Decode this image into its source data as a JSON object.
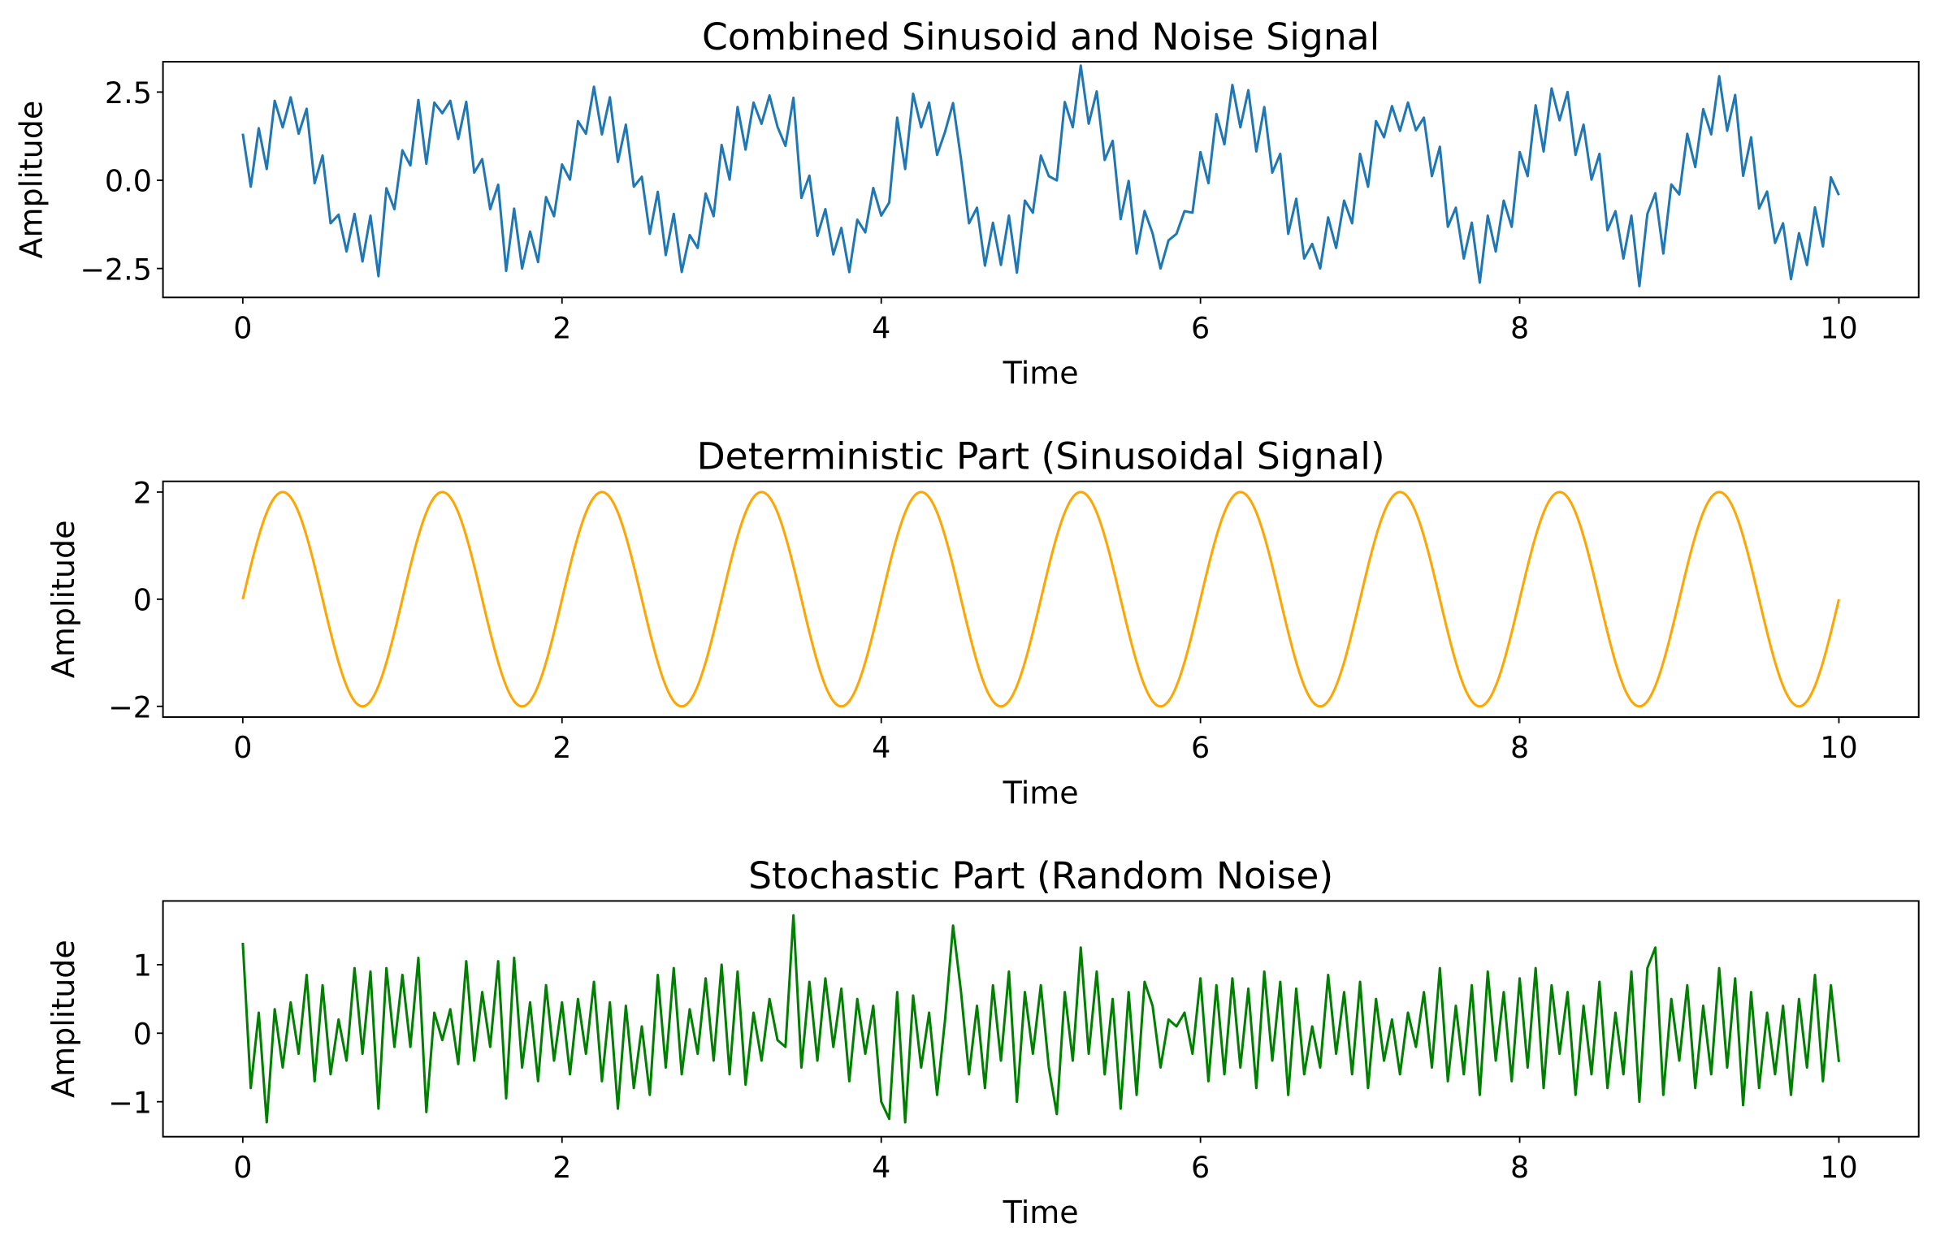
{
  "chart_data": [
    {
      "type": "line",
      "title": "Combined Sinusoid and Noise Signal",
      "xlabel": "Time",
      "ylabel": "Amplitude",
      "xlim": [
        -0.5,
        10.5
      ],
      "ylim": [
        -3.32,
        3.36
      ],
      "xticks": [
        0,
        2,
        4,
        6,
        8,
        10
      ],
      "xtick_labels": [
        "0",
        "2",
        "4",
        "6",
        "8",
        "10"
      ],
      "yticks": [
        -2.5,
        0,
        2.5
      ],
      "ytick_labels": [
        "−2.5",
        "0.0",
        "2.5"
      ],
      "color": "#1f77b4",
      "series": "sinusoid + noise"
    },
    {
      "type": "line",
      "title": "Deterministic Part (Sinusoidal Signal)",
      "xlabel": "Time",
      "ylabel": "Amplitude",
      "xlim": [
        -0.5,
        10.5
      ],
      "ylim": [
        -2.2,
        2.2
      ],
      "xticks": [
        0,
        2,
        4,
        6,
        8,
        10
      ],
      "xtick_labels": [
        "0",
        "2",
        "4",
        "6",
        "8",
        "10"
      ],
      "yticks": [
        -2,
        0,
        2
      ],
      "ytick_labels": [
        "−2",
        "0",
        "2"
      ],
      "color": "#ffa500",
      "series": "sinusoid"
    },
    {
      "type": "line",
      "title": "Stochastic Part (Random Noise)",
      "xlabel": "Time",
      "ylabel": "Amplitude",
      "xlim": [
        -0.5,
        10.5
      ],
      "ylim": [
        -1.51,
        1.93
      ],
      "xticks": [
        0,
        2,
        4,
        6,
        8,
        10
      ],
      "xtick_labels": [
        "0",
        "2",
        "4",
        "6",
        "8",
        "10"
      ],
      "yticks": [
        -1,
        0,
        1
      ],
      "ytick_labels": [
        "−1",
        "0",
        "1"
      ],
      "color": "#008000",
      "series": "noise"
    }
  ],
  "signal": {
    "t_start": 0,
    "t_end": 10,
    "sinusoid_amplitude": 2,
    "sinusoid_frequency_hz": 1,
    "noise_step": 0.05,
    "noise": [
      1.32,
      -0.8,
      0.3,
      -1.3,
      0.35,
      -0.5,
      0.45,
      -0.3,
      0.85,
      -0.7,
      0.7,
      -0.6,
      0.2,
      -0.4,
      0.95,
      -0.3,
      0.9,
      -1.1,
      0.95,
      -0.2,
      0.85,
      -0.2,
      1.1,
      -1.15,
      0.3,
      -0.1,
      0.35,
      -0.45,
      1.05,
      -0.4,
      0.6,
      -0.2,
      1.05,
      -0.95,
      1.1,
      -0.5,
      0.45,
      -0.7,
      0.7,
      -0.4,
      0.45,
      -0.6,
      0.5,
      -0.3,
      0.75,
      -0.7,
      0.45,
      -1.1,
      0.4,
      -0.8,
      0.1,
      -0.9,
      0.85,
      -0.5,
      0.95,
      -0.6,
      0.35,
      -0.3,
      0.8,
      -0.4,
      1.0,
      -0.6,
      0.9,
      -0.75,
      0.3,
      -0.4,
      0.5,
      -0.1,
      -0.2,
      1.72,
      -0.5,
      0.75,
      -0.4,
      0.8,
      -0.2,
      0.65,
      -0.7,
      0.5,
      -0.3,
      0.4,
      -1.0,
      -1.25,
      0.6,
      -1.3,
      0.55,
      -0.5,
      0.3,
      -0.9,
      0.2,
      1.57,
      0.6,
      -0.6,
      0.4,
      -0.8,
      0.7,
      -0.4,
      0.9,
      -1.0,
      0.6,
      -0.3,
      0.7,
      -0.5,
      -1.18,
      0.6,
      -0.4,
      1.25,
      -0.3,
      0.9,
      -0.6,
      0.5,
      -1.1,
      0.6,
      -0.9,
      0.75,
      0.4,
      -0.5,
      0.2,
      0.1,
      0.3,
      -0.3,
      0.8,
      -0.7,
      0.7,
      -0.6,
      0.8,
      -0.5,
      0.65,
      -0.8,
      0.9,
      -0.4,
      0.75,
      -0.9,
      0.65,
      -0.6,
      0.1,
      -0.5,
      0.85,
      -0.3,
      0.6,
      -0.6,
      0.75,
      -0.8,
      0.5,
      -0.4,
      0.2,
      -0.6,
      0.3,
      -0.2,
      0.6,
      -0.5,
      0.95,
      -0.7,
      0.4,
      -0.6,
      0.7,
      -0.9,
      0.9,
      -0.4,
      0.6,
      -0.7,
      0.8,
      -0.5,
      0.95,
      -0.8,
      0.7,
      -0.3,
      0.6,
      -0.9,
      0.4,
      -0.6,
      0.75,
      -0.8,
      0.3,
      -0.6,
      0.9,
      -1.0,
      0.95,
      1.25,
      -0.9,
      0.5,
      -0.4,
      0.7,
      -0.8,
      0.4,
      -0.6,
      0.95,
      -0.5,
      0.8,
      -1.05,
      0.6,
      -0.8,
      0.3,
      -0.6,
      0.4,
      -0.9,
      0.5,
      -0.5,
      0.85,
      -0.7,
      0.7,
      -0.42
    ]
  }
}
